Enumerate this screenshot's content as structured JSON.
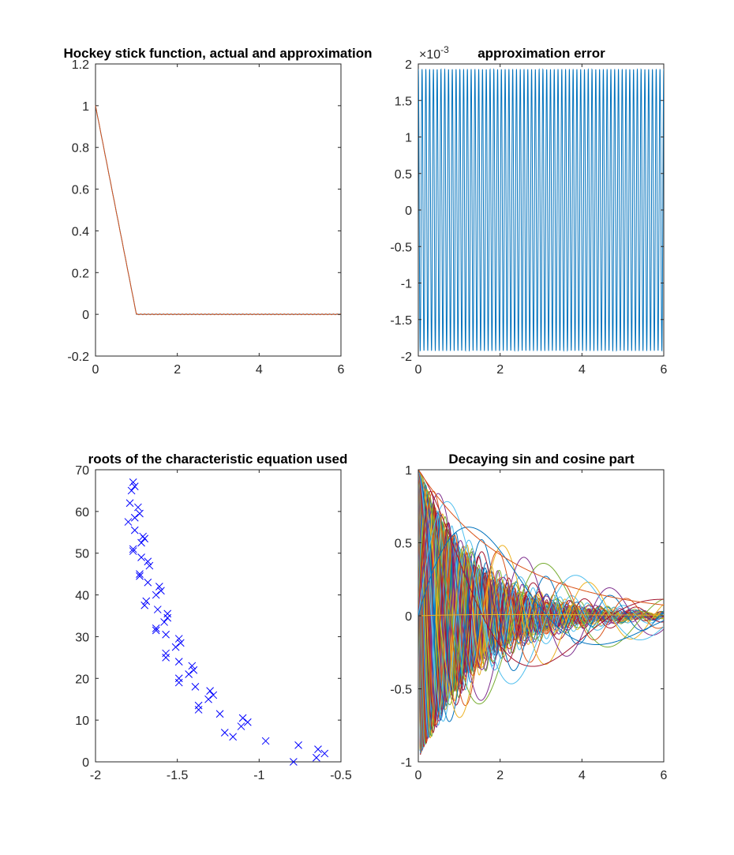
{
  "figure": {
    "background": "#ffffff",
    "axis_color": "#262626"
  },
  "chart_data": [
    {
      "id": "hockey",
      "type": "line",
      "title": "Hockey stick function, actual and approximation",
      "xlim": [
        0,
        6
      ],
      "ylim": [
        -0.2,
        1.2
      ],
      "xticks": [
        0,
        2,
        4,
        6
      ],
      "xtick_labels": [
        "0",
        "2",
        "4",
        "6"
      ],
      "yticks": [
        -0.2,
        0,
        0.2,
        0.4,
        0.6,
        0.8,
        1,
        1.2
      ],
      "ytick_labels": [
        "-0.2",
        "0",
        "0.2",
        "0.4",
        "0.6",
        "0.8",
        "1",
        "1.2"
      ],
      "grid": false,
      "series": [
        {
          "color": "#0072BD",
          "x": [
            0,
            1,
            6
          ],
          "y": [
            1,
            0,
            0
          ]
        },
        {
          "color": "#D95319",
          "x": [
            0,
            1,
            6
          ],
          "y": [
            1,
            0,
            0
          ]
        }
      ]
    },
    {
      "id": "error",
      "type": "line",
      "title": "approximation error",
      "exponent_base": "×10",
      "exponent_power": "-3",
      "xlim": [
        0,
        6
      ],
      "ylim": [
        -2,
        2
      ],
      "xticks": [
        0,
        2,
        4,
        6
      ],
      "xtick_labels": [
        "0",
        "2",
        "4",
        "6"
      ],
      "yticks": [
        -2,
        -1.5,
        -1,
        -0.5,
        0,
        0.5,
        1,
        1.5,
        2
      ],
      "ytick_labels": [
        "-2",
        "-1.5",
        "-1",
        "-0.5",
        "0",
        "0.5",
        "1",
        "1.5",
        "2"
      ],
      "grid": false,
      "series": [
        {
          "color": "#0072BD",
          "amplitude": 1.93,
          "cycles": 65
        }
      ]
    },
    {
      "id": "roots",
      "type": "scatter",
      "title": "roots of the characteristic equation used",
      "xlim": [
        -2,
        -0.5
      ],
      "ylim": [
        0,
        70
      ],
      "xticks": [
        -2,
        -1.5,
        -1,
        -0.5
      ],
      "xtick_labels": [
        "-2",
        "-1.5",
        "-1",
        "-0.5"
      ],
      "yticks": [
        0,
        10,
        20,
        30,
        40,
        50,
        60,
        70
      ],
      "ytick_labels": [
        "0",
        "10",
        "20",
        "30",
        "40",
        "50",
        "60",
        "70"
      ],
      "grid": false,
      "marker": "x",
      "marker_color": "#0000FF",
      "points": [
        [
          -1.77,
          67
        ],
        [
          -1.76,
          66
        ],
        [
          -1.78,
          65
        ],
        [
          -1.79,
          62
        ],
        [
          -1.74,
          61
        ],
        [
          -1.73,
          59.5
        ],
        [
          -1.76,
          58.5
        ],
        [
          -1.8,
          57.5
        ],
        [
          -1.76,
          55.5
        ],
        [
          -1.71,
          54
        ],
        [
          -1.7,
          53.5
        ],
        [
          -1.72,
          52.5
        ],
        [
          -1.77,
          51
        ],
        [
          -1.77,
          50.5
        ],
        [
          -1.72,
          49
        ],
        [
          -1.68,
          48
        ],
        [
          -1.67,
          47
        ],
        [
          -1.73,
          45
        ],
        [
          -1.73,
          44.5
        ],
        [
          -1.68,
          43
        ],
        [
          -1.61,
          42
        ],
        [
          -1.6,
          41
        ],
        [
          -1.63,
          40
        ],
        [
          -1.69,
          38.5
        ],
        [
          -1.7,
          37.5
        ],
        [
          -1.62,
          36.5
        ],
        [
          -1.56,
          35.5
        ],
        [
          -1.56,
          34.5
        ],
        [
          -1.58,
          33.5
        ],
        [
          -1.63,
          32
        ],
        [
          -1.63,
          31.5
        ],
        [
          -1.57,
          30.5
        ],
        [
          -1.49,
          29.5
        ],
        [
          -1.48,
          28.5
        ],
        [
          -1.51,
          27.5
        ],
        [
          -1.57,
          26
        ],
        [
          -1.57,
          25
        ],
        [
          -1.49,
          24
        ],
        [
          -1.41,
          23
        ],
        [
          -1.4,
          22
        ],
        [
          -1.43,
          21
        ],
        [
          -1.49,
          20
        ],
        [
          -1.49,
          19
        ],
        [
          -1.39,
          18
        ],
        [
          -1.3,
          17
        ],
        [
          -1.28,
          16
        ],
        [
          -1.31,
          15
        ],
        [
          -1.37,
          13.5
        ],
        [
          -1.37,
          12.5
        ],
        [
          -1.24,
          11.5
        ],
        [
          -1.1,
          10.5
        ],
        [
          -1.07,
          9.5
        ],
        [
          -1.11,
          8.5
        ],
        [
          -1.21,
          7
        ],
        [
          -1.16,
          6
        ],
        [
          -0.96,
          5
        ],
        [
          -0.76,
          4
        ],
        [
          -0.64,
          3
        ],
        [
          -0.6,
          2
        ],
        [
          -0.65,
          1
        ],
        [
          -0.79,
          0
        ]
      ]
    },
    {
      "id": "decay",
      "type": "line",
      "title": "Decaying sin and cosine part",
      "xlim": [
        0,
        6
      ],
      "ylim": [
        -1,
        1
      ],
      "xticks": [
        0,
        2,
        4,
        6
      ],
      "xtick_labels": [
        "0",
        "2",
        "4",
        "6"
      ],
      "yticks": [
        -1,
        -0.5,
        0,
        0.5,
        1
      ],
      "ytick_labels": [
        "-1",
        "-0.5",
        "0",
        "0.5",
        "1"
      ],
      "grid": false,
      "colors": [
        "#0072BD",
        "#D95319",
        "#EDB120",
        "#7E2F8E",
        "#77AC30",
        "#4DBEEE",
        "#A2142F"
      ],
      "root_reference": "roots"
    }
  ]
}
